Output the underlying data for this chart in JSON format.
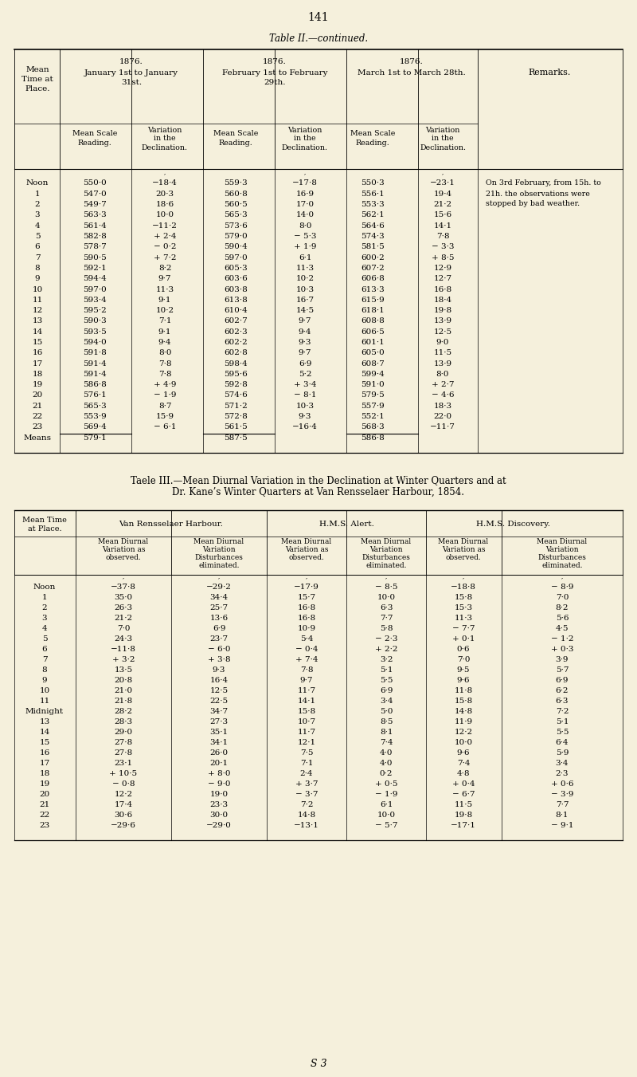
{
  "page_number": "141",
  "bg_color": "#f5f0dc",
  "table2_title": "Table II.—continued.",
  "table2_data": [
    [
      "Noon",
      "550·0",
      "−18·4",
      "559·3",
      "−17·8",
      "550·3",
      "−23·1"
    ],
    [
      "1",
      "547·0",
      "20·3",
      "560·8",
      "16·9",
      "556·1",
      "19·4"
    ],
    [
      "2",
      "549·7",
      "18·6",
      "560·5",
      "17·0",
      "553·3",
      "21·2"
    ],
    [
      "3",
      "563·3",
      "10·0",
      "565·3",
      "14·0",
      "562·1",
      "15·6"
    ],
    [
      "4",
      "561·4",
      "−11·2",
      "573·6",
      "8·0",
      "564·6",
      "14·1"
    ],
    [
      "5",
      "582·8",
      "+ 2·4",
      "579·0",
      "− 5·3",
      "574·3",
      "7·8"
    ],
    [
      "6",
      "578·7",
      "− 0·2",
      "590·4",
      "+ 1·9",
      "581·5",
      "− 3·3"
    ],
    [
      "7",
      "590·5",
      "+ 7·2",
      "597·0",
      "6·1",
      "600·2",
      "+ 8·5"
    ],
    [
      "8",
      "592·1",
      "8·2",
      "605·3",
      "11·3",
      "607·2",
      "12·9"
    ],
    [
      "9",
      "594·4",
      "9·7",
      "603·6",
      "10·2",
      "606·8",
      "12·7"
    ],
    [
      "10",
      "597·0",
      "11·3",
      "603·8",
      "10·3",
      "613·3",
      "16·8"
    ],
    [
      "11",
      "593·4",
      "9·1",
      "613·8",
      "16·7",
      "615·9",
      "18·4"
    ],
    [
      "12",
      "595·2",
      "10·2",
      "610·4",
      "14·5",
      "618·1",
      "19·8"
    ],
    [
      "13",
      "590·3",
      "7·1",
      "602·7",
      "9·7",
      "608·8",
      "13·9"
    ],
    [
      "14",
      "593·5",
      "9·1",
      "602·3",
      "9·4",
      "606·5",
      "12·5"
    ],
    [
      "15",
      "594·0",
      "9·4",
      "602·2",
      "9·3",
      "601·1",
      "9·0"
    ],
    [
      "16",
      "591·8",
      "8·0",
      "602·8",
      "9·7",
      "605·0",
      "11·5"
    ],
    [
      "17",
      "591·4",
      "7·8",
      "598·4",
      "6·9",
      "608·7",
      "13·9"
    ],
    [
      "18",
      "591·4",
      "7·8",
      "595·6",
      "5·2",
      "599·4",
      "8·0"
    ],
    [
      "19",
      "586·8",
      "+ 4·9",
      "592·8",
      "+ 3·4",
      "591·0",
      "+ 2·7"
    ],
    [
      "20",
      "576·1",
      "− 1·9",
      "574·6",
      "− 8·1",
      "579·5",
      "− 4·6"
    ],
    [
      "21",
      "565·3",
      "8·7",
      "571·2",
      "10·3",
      "557·9",
      "18·3"
    ],
    [
      "22",
      "553·9",
      "15·9",
      "572·8",
      "9·3",
      "552·1",
      "22·0"
    ],
    [
      "23",
      "569·4",
      "− 6·1",
      "561·5",
      "−16·4",
      "568·3",
      "−11·7"
    ],
    [
      "Means",
      "579·1",
      "",
      "587·5",
      "",
      "586·8",
      ""
    ]
  ],
  "table2_remark_lines": [
    "On 3rd February, from 15h. to",
    "21h. the observations were",
    "stopped by bad weather."
  ],
  "table3_title_line1": "Taele III.—Mean Diurnal Variation in the Declination at Winter Quarters and at",
  "table3_title_line2": "Dr. Kane’s Winter Quarters at Van Rensselaer Harbour, 1854.",
  "table3_data": [
    [
      "Noon",
      "−37·8",
      "−29·2",
      "−17·9",
      "− 8·5",
      "−18·8",
      "− 8·9"
    ],
    [
      "1",
      "35·0",
      "34·4",
      "15·7",
      "10·0",
      "15·8",
      "7·0"
    ],
    [
      "2",
      "26·3",
      "25·7",
      "16·8",
      "6·3",
      "15·3",
      "8·2"
    ],
    [
      "3",
      "21·2",
      "13·6",
      "16·8",
      "7·7",
      "11·3",
      "5·6"
    ],
    [
      "4",
      "7·0",
      "6·9",
      "10·9",
      "5·8",
      "− 7·7",
      "4·5"
    ],
    [
      "5",
      "24·3",
      "23·7",
      "5·4",
      "− 2·3",
      "+ 0·1",
      "− 1·2"
    ],
    [
      "6",
      "−11·8",
      "− 6·0",
      "− 0·4",
      "+ 2·2",
      "0·6",
      "+ 0·3"
    ],
    [
      "7",
      "+ 3·2",
      "+ 3·8",
      "+ 7·4",
      "3·2",
      "7·0",
      "3·9"
    ],
    [
      "8",
      "13·5",
      "9·3",
      "7·8",
      "5·1",
      "9·5",
      "5·7"
    ],
    [
      "9",
      "20·8",
      "16·4",
      "9·7",
      "5·5",
      "9·6",
      "6·9"
    ],
    [
      "10",
      "21·0",
      "12·5",
      "11·7",
      "6·9",
      "11·8",
      "6·2"
    ],
    [
      "11",
      "21·8",
      "22·5",
      "14·1",
      "3·4",
      "15·8",
      "6·3"
    ],
    [
      "Midnight",
      "28·2",
      "34·7",
      "15·8",
      "5·0",
      "14·8",
      "7·2"
    ],
    [
      "13",
      "28·3",
      "27·3",
      "10·7",
      "8·5",
      "11·9",
      "5·1"
    ],
    [
      "14",
      "29·0",
      "35·1",
      "11·7",
      "8·1",
      "12·2",
      "5·5"
    ],
    [
      "15",
      "27·8",
      "34·1",
      "12·1",
      "7·4",
      "10·0",
      "6·4"
    ],
    [
      "16",
      "27·8",
      "26·0",
      "7·5",
      "4·0",
      "9·6",
      "5·9"
    ],
    [
      "17",
      "23·1",
      "20·1",
      "7·1",
      "4·0",
      "7·4",
      "3·4"
    ],
    [
      "18",
      "+ 10·5",
      "+ 8·0",
      "2·4",
      "0·2",
      "4·8",
      "2·3"
    ],
    [
      "19",
      "− 0·8",
      "− 9·0",
      "+ 3·7",
      "+ 0·5",
      "+ 0·4",
      "+ 0·6"
    ],
    [
      "20",
      "12·2",
      "19·0",
      "− 3·7",
      "− 1·9",
      "− 6·7",
      "− 3·9"
    ],
    [
      "21",
      "17·4",
      "23·3",
      "7·2",
      "6·1",
      "11·5",
      "7·7"
    ],
    [
      "22",
      "30·6",
      "30·0",
      "14·8",
      "10·0",
      "19·8",
      "8·1"
    ],
    [
      "23",
      "−29·6",
      "−29·0",
      "−13·1",
      "− 5·7",
      "−17·1",
      "− 9·1"
    ]
  ],
  "footer": "S 3"
}
